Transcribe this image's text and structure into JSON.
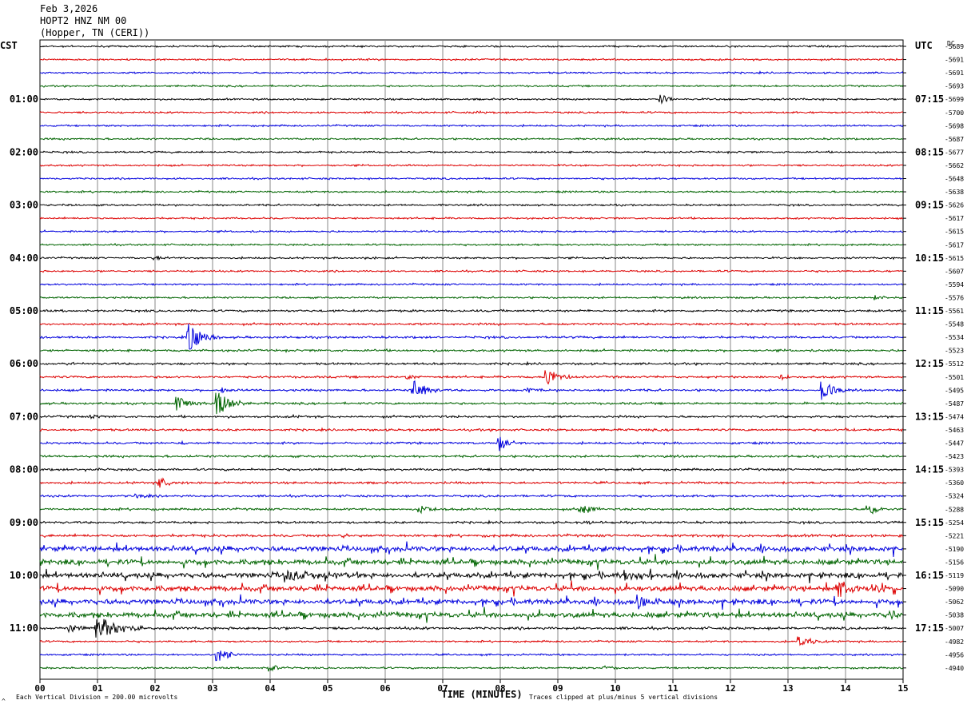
{
  "header": {
    "date": "Feb 3,2026",
    "station": "HOPT2 HNZ NM 00",
    "location": "(Hopper, TN (CERI))"
  },
  "chart_data": {
    "type": "line",
    "title": "",
    "left_axis_label": "CST",
    "right_axis_label": "UTC",
    "dc_label": "DC",
    "xlabel": "TIME (MINUTES)",
    "xlim": [
      0,
      15
    ],
    "x_tick_labels": [
      "00",
      "01",
      "02",
      "03",
      "04",
      "05",
      "06",
      "07",
      "08",
      "09",
      "10",
      "11",
      "12",
      "13",
      "14",
      "15"
    ],
    "left_time_labels": [
      "01:00",
      "02:00",
      "03:00",
      "04:00",
      "05:00",
      "06:00",
      "07:00",
      "08:00",
      "09:00",
      "10:00",
      "11:00"
    ],
    "right_time_labels": [
      "07:15",
      "08:15",
      "09:15",
      "10:15",
      "11:15",
      "12:15",
      "13:15",
      "14:15",
      "15:15",
      "16:15",
      "17:15"
    ],
    "dc_values": [
      "-5689",
      "-5691",
      "-5691",
      "-5693",
      "-5699",
      "-5700",
      "-5698",
      "-5687",
      "-5677",
      "-5662",
      "-5648",
      "-5638",
      "-5626",
      "-5617",
      "-5615",
      "-5617",
      "-5615",
      "-5607",
      "-5594",
      "-5576",
      "-5561",
      "-5548",
      "-5534",
      "-5523",
      "-5512",
      "-5501",
      "-5495",
      "-5487",
      "-5474",
      "-5463",
      "-5447",
      "-5423",
      "-5393",
      "-5360",
      "-5324",
      "-5288",
      "-5254",
      "-5221",
      "-5190",
      "-5156",
      "-5119",
      "-5090",
      "-5062",
      "-5038",
      "-5007",
      "-4982",
      "-4956",
      "-4940"
    ],
    "trace_colors": [
      "#000000",
      "#dd0000",
      "#0000dd",
      "#006400"
    ],
    "minutes_per_trace": 15,
    "trace_count": 48,
    "footer_left": "Each Vertical Division =  200.00 microvolts",
    "footer_right": "Traces clipped at plus/minus 5 vertical divisions",
    "footer_mark": "^"
  }
}
